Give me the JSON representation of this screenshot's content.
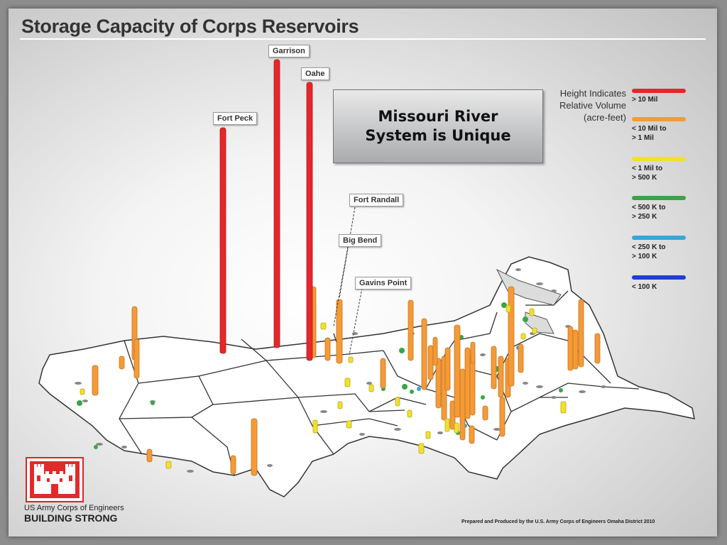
{
  "title": "Storage Capacity of Corps Reservoirs",
  "callout": "Missouri River\nSystem is Unique",
  "labels": {
    "fort_peck": "Fort Peck",
    "garrison": "Garrison",
    "oahe": "Oahe",
    "fort_randall": "Fort Randall",
    "big_bend": "Big Bend",
    "gavins_point": "Gavins Point"
  },
  "legend": {
    "title": "Height Indicates\nRelative Volume\n(acre-feet)",
    "items": [
      {
        "label": "> 10 Mil",
        "color": "#e8262a"
      },
      {
        "label": "< 10 Mil to\n> 1 Mil",
        "color": "#f49a37"
      },
      {
        "label": "< 1 Mil to\n> 500 K",
        "color": "#f2e12b"
      },
      {
        "label": "< 500 K to\n> 250 K",
        "color": "#3aa447"
      },
      {
        "label": "< 250 K to\n> 100 K",
        "color": "#38a6d8"
      },
      {
        "label": "< 100 K",
        "color": "#1f3ed6"
      }
    ]
  },
  "brand": {
    "line1": "US Army Corps of Engineers",
    "line2": "BUILDING STRONG"
  },
  "footer": "Prepared and Produced by the U.S. Army Corps of Engineers Omaha District 2010"
}
